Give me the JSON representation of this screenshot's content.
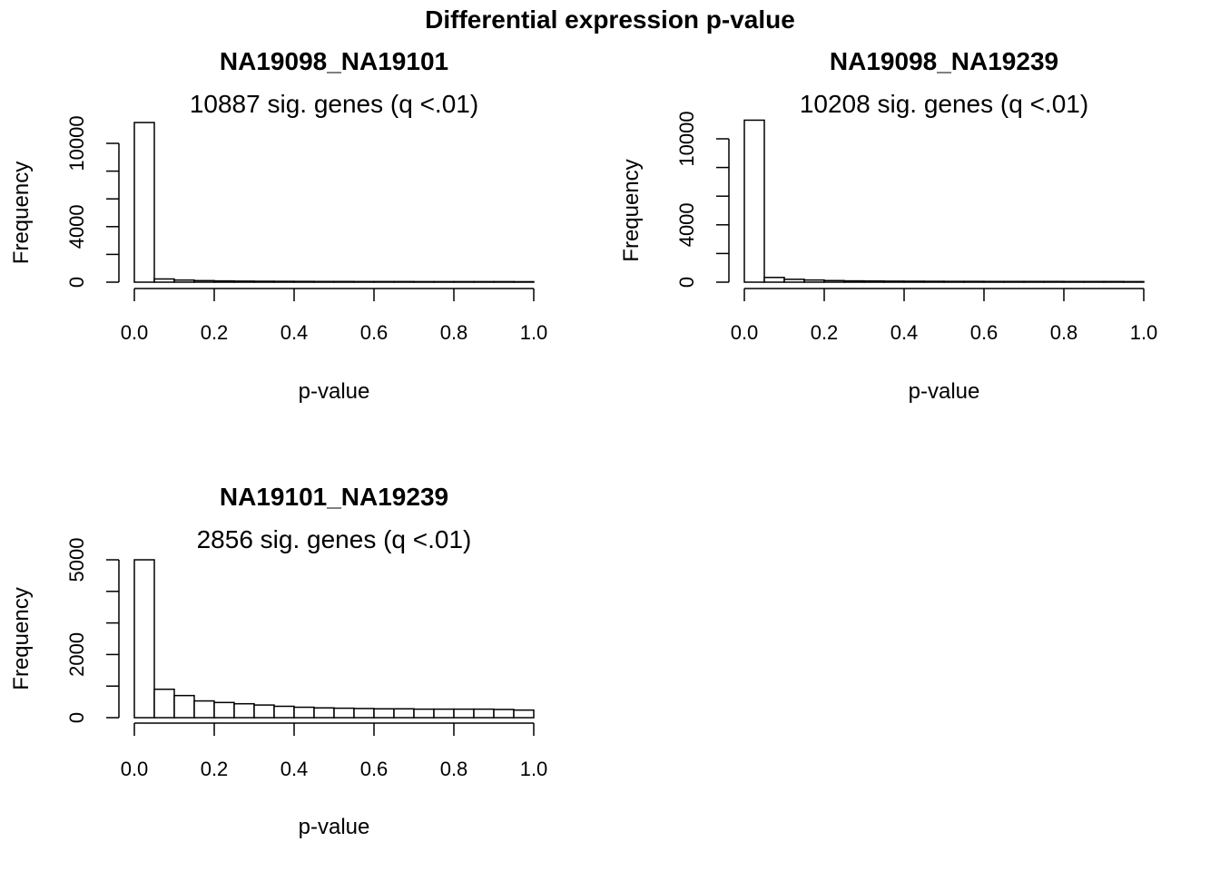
{
  "title": "Differential expression p-value",
  "chart_data": [
    {
      "type": "bar",
      "title": "NA19098_NA19101",
      "subtitle": "10887 sig. genes (q <.01)",
      "xlabel": "p-value",
      "ylabel": "Frequency",
      "bin_edges": [
        0.0,
        0.05,
        0.1,
        0.15,
        0.2,
        0.25,
        0.3,
        0.35,
        0.4,
        0.45,
        0.5,
        0.55,
        0.6,
        0.65,
        0.7,
        0.75,
        0.8,
        0.85,
        0.9,
        0.95,
        1.0
      ],
      "values": [
        11500,
        230,
        150,
        110,
        90,
        75,
        65,
        60,
        55,
        50,
        50,
        45,
        45,
        45,
        40,
        40,
        40,
        40,
        40,
        35
      ],
      "xlim": [
        0,
        1
      ],
      "ylim": [
        0,
        10000
      ],
      "xticks": [
        "0.0",
        "0.2",
        "0.4",
        "0.6",
        "0.8",
        "1.0"
      ],
      "yticks": [
        "0",
        "4000",
        "10000"
      ],
      "ytick_marks": [
        0,
        2000,
        4000,
        6000,
        8000,
        10000
      ]
    },
    {
      "type": "bar",
      "title": "NA19098_NA19239",
      "subtitle": "10208 sig. genes (q <.01)",
      "xlabel": "p-value",
      "ylabel": "Frequency",
      "bin_edges": [
        0.0,
        0.05,
        0.1,
        0.15,
        0.2,
        0.25,
        0.3,
        0.35,
        0.4,
        0.45,
        0.5,
        0.55,
        0.6,
        0.65,
        0.7,
        0.75,
        0.8,
        0.85,
        0.9,
        0.95,
        1.0
      ],
      "values": [
        11300,
        330,
        200,
        150,
        110,
        90,
        80,
        70,
        65,
        60,
        55,
        55,
        50,
        50,
        50,
        50,
        45,
        45,
        45,
        40
      ],
      "xlim": [
        0,
        1
      ],
      "ylim": [
        0,
        10000
      ],
      "xticks": [
        "0.0",
        "0.2",
        "0.4",
        "0.6",
        "0.8",
        "1.0"
      ],
      "yticks": [
        "0",
        "4000",
        "10000"
      ],
      "ytick_marks": [
        0,
        2000,
        4000,
        6000,
        8000,
        10000
      ]
    },
    {
      "type": "bar",
      "title": "NA19101_NA19239",
      "subtitle": "2856 sig. genes (q <.01)",
      "xlabel": "p-value",
      "ylabel": "Frequency",
      "bin_edges": [
        0.0,
        0.05,
        0.1,
        0.15,
        0.2,
        0.25,
        0.3,
        0.35,
        0.4,
        0.45,
        0.5,
        0.55,
        0.6,
        0.65,
        0.7,
        0.75,
        0.8,
        0.85,
        0.9,
        0.95,
        1.0
      ],
      "values": [
        5000,
        900,
        700,
        530,
        480,
        440,
        400,
        360,
        330,
        310,
        300,
        290,
        280,
        280,
        270,
        270,
        270,
        270,
        260,
        240
      ],
      "xlim": [
        0,
        1
      ],
      "ylim": [
        0,
        5000
      ],
      "xticks": [
        "0.0",
        "0.2",
        "0.4",
        "0.6",
        "0.8",
        "1.0"
      ],
      "yticks": [
        "0",
        "2000",
        "5000"
      ],
      "ytick_marks": [
        0,
        1000,
        2000,
        3000,
        4000,
        5000
      ]
    }
  ]
}
